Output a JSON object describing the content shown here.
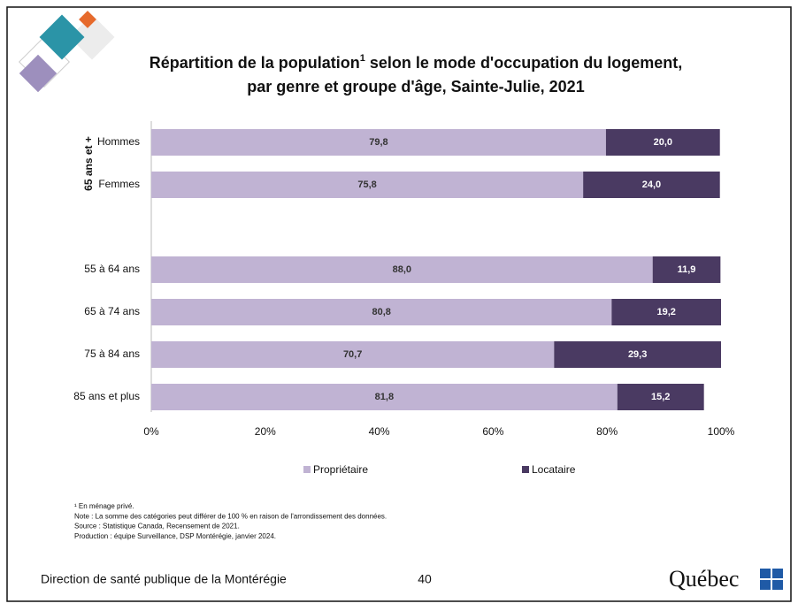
{
  "chart_data": {
    "type": "stacked-bar-horizontal",
    "title": "Répartition de la population",
    "title_sup": "1",
    "title_rest": " selon le mode d'occupation du logement,",
    "title_line2": "par genre et groupe d'âge, Sainte-Julie, 2021",
    "group_label": "65 ans et +",
    "categories": [
      "Hommes",
      "Femmes",
      null,
      "55 à 64 ans",
      "65 à 74 ans",
      "75 à 84 ans",
      "85 ans et plus"
    ],
    "series": [
      {
        "name": "Propriétaire",
        "color": "#c0b3d3",
        "label_color": "#333333",
        "values": [
          79.8,
          75.8,
          null,
          88.0,
          80.8,
          70.7,
          81.8
        ],
        "value_labels": [
          "79,8",
          "75,8",
          null,
          "88,0",
          "80,8",
          "70,7",
          "81,8"
        ]
      },
      {
        "name": "Locataire",
        "color": "#4a3a62",
        "label_color": "#ffffff",
        "values": [
          20.0,
          24.0,
          null,
          11.9,
          19.2,
          29.3,
          15.2
        ],
        "value_labels": [
          "20,0",
          "24,0",
          null,
          "11,9",
          "19,2",
          "29,3",
          "15,2"
        ]
      }
    ],
    "xlim": [
      0,
      100
    ],
    "xticks": [
      {
        "value": 0,
        "label": "0%"
      },
      {
        "value": 20,
        "label": "20%"
      },
      {
        "value": 40,
        "label": "40%"
      },
      {
        "value": 60,
        "label": "60%"
      },
      {
        "value": 80,
        "label": "80%"
      },
      {
        "value": 100,
        "label": "100%"
      }
    ],
    "legend": "bottom"
  },
  "notes": [
    "¹ En ménage privé.",
    "Note : La somme des catégories peut différer de 100 % en raison de l'arrondissement des données.",
    "Source : Statistique Canada, Recensement de 2021.",
    "Production : équipe Surveillance, DSP Montérégie, janvier 2024."
  ],
  "footer": {
    "organization": "Direction de santé publique de la Montérégie",
    "page": "40",
    "logo": "Québec"
  }
}
